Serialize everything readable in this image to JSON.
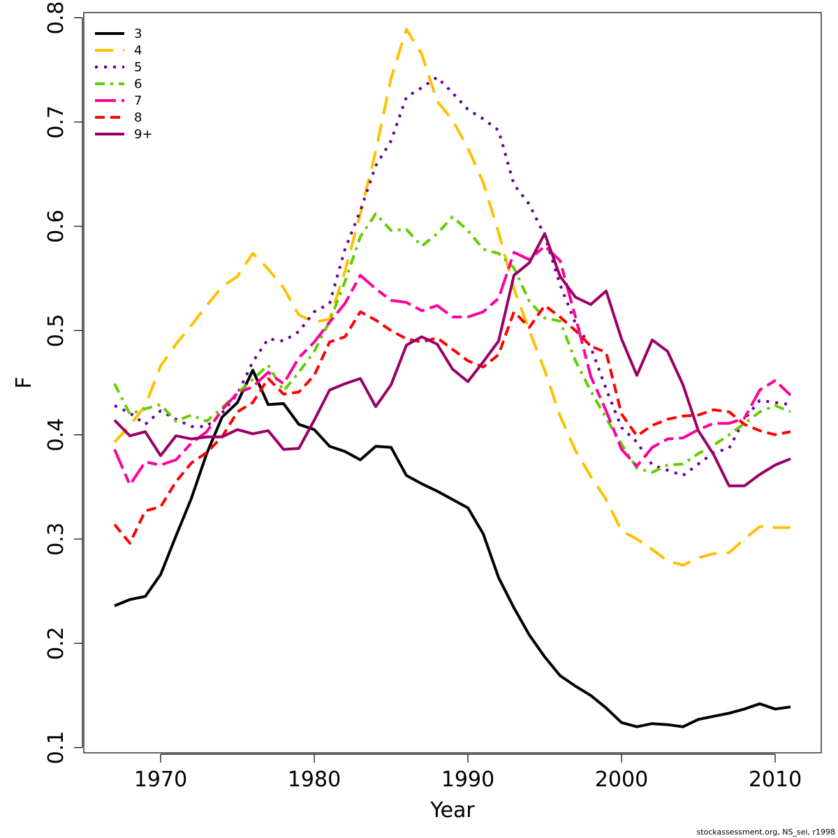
{
  "chart_data": {
    "type": "line",
    "title": "",
    "xlabel": "Year",
    "ylabel": "F",
    "xlim": [
      1965,
      2013
    ],
    "ylim": [
      0.095,
      0.805
    ],
    "xticks": [
      1970,
      1980,
      1990,
      2000,
      2010
    ],
    "xtick_labels": [
      "1970",
      "1980",
      "1990",
      "2000",
      "2010"
    ],
    "yticks": [
      0.1,
      0.2,
      0.3,
      0.4,
      0.5,
      0.6,
      0.7,
      0.8
    ],
    "ytick_labels": [
      "0.1",
      "0.2",
      "0.3",
      "0.4",
      "0.5",
      "0.6",
      "0.7",
      "0.8"
    ],
    "grid": false,
    "legend_position": "top-left",
    "x": [
      1967,
      1968,
      1969,
      1970,
      1971,
      1972,
      1973,
      1974,
      1975,
      1976,
      1977,
      1978,
      1979,
      1980,
      1981,
      1982,
      1983,
      1984,
      1985,
      1986,
      1987,
      1988,
      1989,
      1990,
      1991,
      1992,
      1993,
      1994,
      1995,
      1996,
      1997,
      1998,
      1999,
      2000,
      2001,
      2002,
      2003,
      2004,
      2005,
      2006,
      2007,
      2008,
      2009,
      2010,
      2011
    ],
    "series": [
      {
        "name": "3",
        "color": "#000000",
        "dash": "solid",
        "values": [
          0.236,
          0.242,
          0.245,
          0.266,
          0.303,
          0.339,
          0.382,
          0.417,
          0.431,
          0.462,
          0.429,
          0.43,
          0.41,
          0.405,
          0.389,
          0.384,
          0.376,
          0.389,
          0.388,
          0.361,
          0.353,
          0.346,
          0.338,
          0.33,
          0.305,
          0.263,
          0.234,
          0.208,
          0.187,
          0.169,
          0.159,
          0.15,
          0.138,
          0.124,
          0.12,
          0.123,
          0.122,
          0.12,
          0.127,
          0.13,
          0.133,
          0.137,
          0.142,
          0.137,
          0.139
        ]
      },
      {
        "name": "4",
        "color": "#FFC000",
        "dash": "long",
        "values": [
          0.393,
          0.409,
          0.428,
          0.466,
          0.487,
          0.505,
          0.524,
          0.542,
          0.552,
          0.574,
          0.559,
          0.541,
          0.515,
          0.508,
          0.511,
          0.557,
          0.612,
          0.672,
          0.742,
          0.789,
          0.765,
          0.72,
          0.702,
          0.675,
          0.642,
          0.594,
          0.54,
          0.5,
          0.462,
          0.418,
          0.385,
          0.36,
          0.338,
          0.308,
          0.3,
          0.29,
          0.279,
          0.275,
          0.282,
          0.286,
          0.287,
          0.3,
          0.312,
          0.311,
          0.311
        ]
      },
      {
        "name": "5",
        "color": "#660099",
        "dash": "dotted",
        "values": [
          0.428,
          0.421,
          0.41,
          0.423,
          0.415,
          0.408,
          0.408,
          0.421,
          0.439,
          0.47,
          0.492,
          0.49,
          0.499,
          0.518,
          0.526,
          0.578,
          0.615,
          0.658,
          0.682,
          0.724,
          0.733,
          0.743,
          0.728,
          0.712,
          0.703,
          0.692,
          0.64,
          0.621,
          0.591,
          0.544,
          0.507,
          0.484,
          0.444,
          0.407,
          0.393,
          0.371,
          0.366,
          0.361,
          0.372,
          0.383,
          0.387,
          0.415,
          0.433,
          0.431,
          0.429
        ]
      },
      {
        "name": "6",
        "color": "#66CC00",
        "dash": "dashdot",
        "values": [
          0.449,
          0.42,
          0.425,
          0.429,
          0.413,
          0.419,
          0.413,
          0.426,
          0.44,
          0.453,
          0.467,
          0.442,
          0.46,
          0.48,
          0.509,
          0.547,
          0.59,
          0.612,
          0.596,
          0.597,
          0.581,
          0.593,
          0.609,
          0.596,
          0.578,
          0.574,
          0.56,
          0.528,
          0.512,
          0.509,
          0.471,
          0.442,
          0.416,
          0.391,
          0.368,
          0.364,
          0.371,
          0.372,
          0.382,
          0.39,
          0.4,
          0.411,
          0.422,
          0.428,
          0.422
        ]
      },
      {
        "name": "7",
        "color": "#FF0099",
        "dash": "twodash",
        "values": [
          0.386,
          0.352,
          0.374,
          0.371,
          0.376,
          0.392,
          0.403,
          0.424,
          0.44,
          0.446,
          0.46,
          0.449,
          0.474,
          0.489,
          0.508,
          0.526,
          0.553,
          0.54,
          0.529,
          0.527,
          0.519,
          0.524,
          0.513,
          0.513,
          0.518,
          0.531,
          0.575,
          0.568,
          0.581,
          0.567,
          0.513,
          0.456,
          0.423,
          0.386,
          0.37,
          0.388,
          0.396,
          0.397,
          0.405,
          0.411,
          0.411,
          0.416,
          0.443,
          0.452,
          0.438
        ]
      },
      {
        "name": "8",
        "color": "#FF0000",
        "dash": "dashed",
        "values": [
          0.314,
          0.296,
          0.327,
          0.331,
          0.355,
          0.373,
          0.383,
          0.398,
          0.422,
          0.431,
          0.454,
          0.439,
          0.441,
          0.457,
          0.489,
          0.494,
          0.518,
          0.51,
          0.5,
          0.492,
          0.489,
          0.493,
          0.482,
          0.471,
          0.465,
          0.477,
          0.518,
          0.503,
          0.524,
          0.513,
          0.5,
          0.485,
          0.479,
          0.42,
          0.399,
          0.409,
          0.415,
          0.418,
          0.419,
          0.424,
          0.422,
          0.41,
          0.404,
          0.4,
          0.403
        ]
      },
      {
        "name": "9+",
        "color": "#990066",
        "dash": "solid",
        "values": [
          0.414,
          0.399,
          0.403,
          0.38,
          0.399,
          0.396,
          0.398,
          0.398,
          0.405,
          0.401,
          0.404,
          0.386,
          0.387,
          0.414,
          0.443,
          0.449,
          0.454,
          0.427,
          0.448,
          0.486,
          0.494,
          0.487,
          0.463,
          0.451,
          0.47,
          0.49,
          0.553,
          0.565,
          0.593,
          0.552,
          0.532,
          0.525,
          0.538,
          0.492,
          0.457,
          0.491,
          0.48,
          0.448,
          0.404,
          0.381,
          0.351,
          0.351,
          0.362,
          0.371,
          0.377
        ]
      }
    ]
  },
  "footer": {
    "credit": "stockassessment.org, NS_sei, r1998"
  }
}
